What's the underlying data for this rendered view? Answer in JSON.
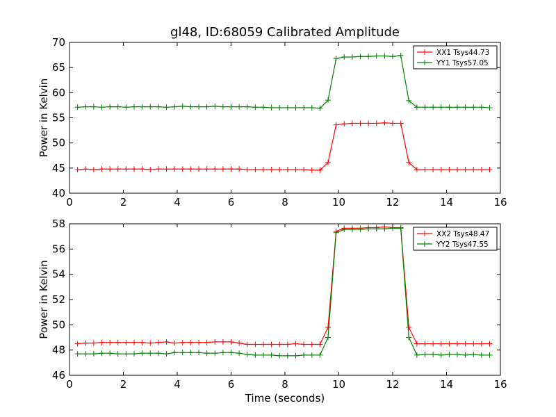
{
  "title": "gl48, ID:68059 Calibrated Amplitude",
  "colors": {
    "red": "#ff0000",
    "green": "#008000",
    "axis": "#000000",
    "bg": "#ffffff"
  },
  "chart_data": [
    {
      "type": "line",
      "title": "gl48, ID:68059 Calibrated Amplitude",
      "xlabel": "",
      "ylabel": "Power in Kelvin",
      "xlim": [
        0,
        16
      ],
      "ylim": [
        40,
        70
      ],
      "xticks": [
        0,
        2,
        4,
        6,
        8,
        10,
        12,
        14,
        16
      ],
      "yticks": [
        40,
        45,
        50,
        55,
        60,
        65,
        70
      ],
      "legend_position": "top-right",
      "x": [
        0.3,
        0.6,
        0.9,
        1.2,
        1.5,
        1.8,
        2.1,
        2.4,
        2.7,
        3.0,
        3.3,
        3.6,
        3.9,
        4.2,
        4.5,
        4.8,
        5.1,
        5.4,
        5.7,
        6.0,
        6.3,
        6.6,
        6.9,
        7.2,
        7.5,
        7.8,
        8.1,
        8.4,
        8.7,
        9.0,
        9.3,
        9.6,
        9.9,
        10.2,
        10.5,
        10.8,
        11.1,
        11.4,
        11.7,
        12.0,
        12.3,
        12.6,
        12.9,
        13.2,
        13.5,
        13.8,
        14.1,
        14.4,
        14.7,
        15.0,
        15.3,
        15.6
      ],
      "series": [
        {
          "name": "XX1 Tsys44.73",
          "color": "#ff0000",
          "values": [
            44.7,
            44.8,
            44.7,
            44.8,
            44.8,
            44.8,
            44.8,
            44.8,
            44.8,
            44.7,
            44.8,
            44.8,
            44.8,
            44.8,
            44.8,
            44.8,
            44.8,
            44.8,
            44.8,
            44.8,
            44.8,
            44.7,
            44.7,
            44.7,
            44.7,
            44.7,
            44.7,
            44.7,
            44.7,
            44.6,
            44.6,
            46.1,
            53.6,
            53.8,
            53.9,
            53.9,
            53.9,
            53.9,
            54.0,
            53.9,
            53.9,
            46.1,
            44.7,
            44.7,
            44.7,
            44.7,
            44.7,
            44.7,
            44.7,
            44.7,
            44.7,
            44.7
          ]
        },
        {
          "name": "YY1 Tsys57.05",
          "color": "#008000",
          "values": [
            57.1,
            57.2,
            57.2,
            57.1,
            57.2,
            57.2,
            57.1,
            57.2,
            57.2,
            57.2,
            57.2,
            57.1,
            57.2,
            57.3,
            57.2,
            57.2,
            57.2,
            57.3,
            57.2,
            57.2,
            57.2,
            57.2,
            57.1,
            57.1,
            57.0,
            57.0,
            57.0,
            57.0,
            57.0,
            57.0,
            56.9,
            58.5,
            66.8,
            67.1,
            67.1,
            67.2,
            67.2,
            67.3,
            67.3,
            67.2,
            67.4,
            58.4,
            57.1,
            57.1,
            57.1,
            57.1,
            57.1,
            57.1,
            57.1,
            57.1,
            57.1,
            57.0
          ]
        }
      ]
    },
    {
      "type": "line",
      "title": "",
      "xlabel": "Time (seconds)",
      "ylabel": "Power in Kelvin",
      "xlim": [
        0,
        16
      ],
      "ylim": [
        46,
        58
      ],
      "xticks": [
        0,
        2,
        4,
        6,
        8,
        10,
        12,
        14,
        16
      ],
      "yticks": [
        46,
        48,
        50,
        52,
        54,
        56,
        58
      ],
      "legend_position": "top-right",
      "x": [
        0.3,
        0.6,
        0.9,
        1.2,
        1.5,
        1.8,
        2.1,
        2.4,
        2.7,
        3.0,
        3.3,
        3.6,
        3.9,
        4.2,
        4.5,
        4.8,
        5.1,
        5.4,
        5.7,
        6.0,
        6.3,
        6.6,
        6.9,
        7.2,
        7.5,
        7.8,
        8.1,
        8.4,
        8.7,
        9.0,
        9.3,
        9.6,
        9.9,
        10.2,
        10.5,
        10.8,
        11.1,
        11.4,
        11.7,
        12.0,
        12.3,
        12.6,
        12.9,
        13.2,
        13.5,
        13.8,
        14.1,
        14.4,
        14.7,
        15.0,
        15.3,
        15.6
      ],
      "series": [
        {
          "name": "XX2 Tsys48.47",
          "color": "#ff0000",
          "values": [
            48.5,
            48.55,
            48.55,
            48.6,
            48.6,
            48.6,
            48.6,
            48.6,
            48.6,
            48.55,
            48.6,
            48.65,
            48.55,
            48.6,
            48.6,
            48.6,
            48.6,
            48.65,
            48.65,
            48.65,
            48.55,
            48.45,
            48.45,
            48.45,
            48.45,
            48.45,
            48.45,
            48.5,
            48.45,
            48.45,
            48.45,
            49.8,
            57.4,
            57.65,
            57.65,
            57.65,
            57.7,
            57.7,
            57.75,
            57.7,
            57.7,
            49.8,
            48.5,
            48.5,
            48.5,
            48.5,
            48.5,
            48.5,
            48.5,
            48.5,
            48.5,
            48.5
          ]
        },
        {
          "name": "YY2 Tsys47.55",
          "color": "#008000",
          "values": [
            47.7,
            47.7,
            47.7,
            47.75,
            47.75,
            47.7,
            47.7,
            47.7,
            47.75,
            47.75,
            47.75,
            47.7,
            47.8,
            47.8,
            47.8,
            47.8,
            47.75,
            47.75,
            47.8,
            47.8,
            47.75,
            47.65,
            47.6,
            47.6,
            47.6,
            47.55,
            47.55,
            47.55,
            47.6,
            47.6,
            47.6,
            49.0,
            57.3,
            57.55,
            57.55,
            57.55,
            57.6,
            57.6,
            57.6,
            57.65,
            57.65,
            49.0,
            47.6,
            47.65,
            47.65,
            47.6,
            47.65,
            47.65,
            47.6,
            47.65,
            47.6,
            47.6
          ]
        }
      ]
    }
  ]
}
